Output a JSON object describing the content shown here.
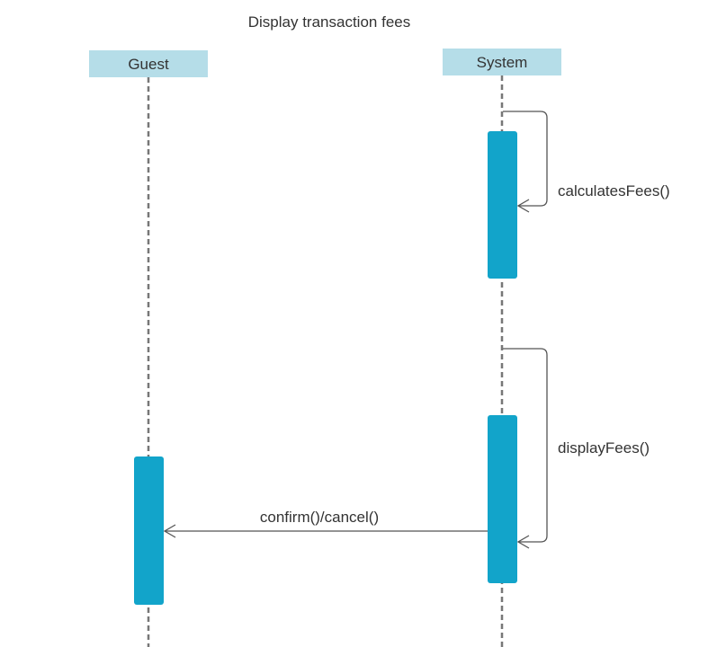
{
  "diagram": {
    "title": "Display transaction fees",
    "colors": {
      "participant_fill": "#b5dde8",
      "activation_fill": "#12a4ca",
      "lifeline_stroke": "#777777",
      "message_stroke": "#555555",
      "text": "#333333"
    },
    "participants": [
      {
        "name": "Guest"
      },
      {
        "name": "System"
      }
    ],
    "messages": [
      {
        "label": "calculatesFees()",
        "from": "System",
        "to": "System",
        "kind": "self"
      },
      {
        "label": "displayFees()",
        "from": "System",
        "to": "System",
        "kind": "self"
      },
      {
        "label": "confirm()/cancel()",
        "from": "System",
        "to": "Guest",
        "kind": "call"
      }
    ]
  }
}
